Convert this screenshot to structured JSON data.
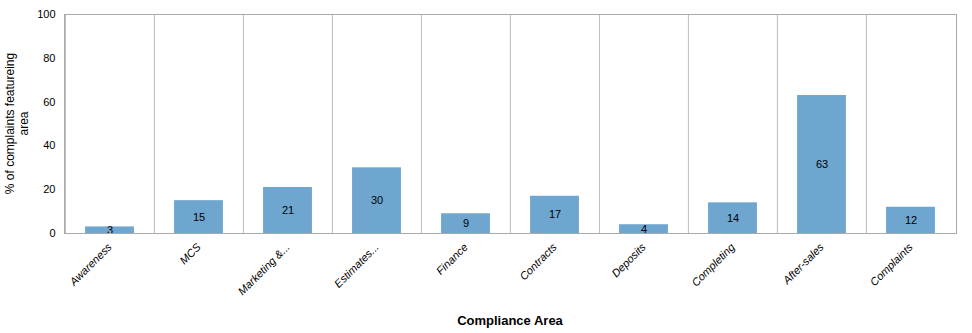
{
  "chart_data": {
    "type": "bar",
    "categories": [
      "Awareness",
      "MCS",
      "Marketing &...",
      "Estimates...",
      "Finance",
      "Contracts",
      "Deposits",
      "Completing",
      "After-sales",
      "Complaints"
    ],
    "values": [
      3,
      15,
      21,
      30,
      9,
      17,
      4,
      14,
      63,
      12
    ],
    "color": "#6EA6D0",
    "xlabel": "Compliance Area",
    "ylabel": "% of complaints featureing\narea",
    "ylim": [
      0,
      100
    ],
    "yticks": [
      0,
      20,
      40,
      60,
      80,
      100
    ],
    "grid": "x",
    "data_labels": true
  }
}
